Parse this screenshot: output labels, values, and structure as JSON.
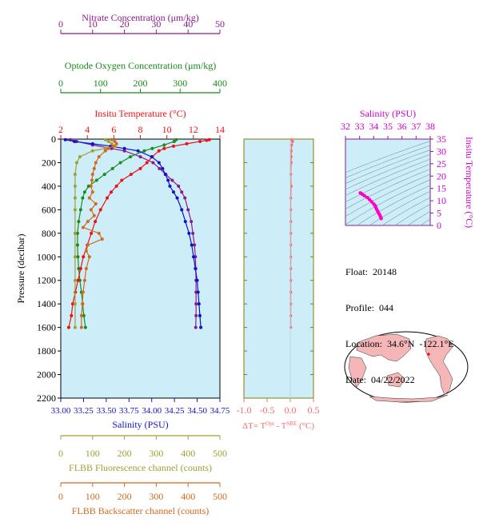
{
  "colors": {
    "nitrate": "#8b1a8b",
    "oxygen": "#1a8a1a",
    "temperature": "#ee1111",
    "salinity": "#1111cc",
    "fluorescence": "#a0a030",
    "backscatter": "#d2691e",
    "delta_t": "#ff6a6a",
    "plot_bg": "#cdeef8",
    "ts_curve": "#ff00cc",
    "map_land": "#f4b6b6"
  },
  "info": {
    "float_label": "Float:",
    "float_value": "20148",
    "profile_label": "Profile:",
    "profile_value": "044",
    "location_label": "Location:",
    "location_value": "34.6°N  -122.1°E",
    "date_label": "Date:",
    "date_value": "04/22/2022"
  },
  "map": {
    "icon": "world-map-icon",
    "float_marker": "float-position-marker"
  },
  "chart_data": [
    {
      "type": "line",
      "name": "profile",
      "ylabel": "Pressure (decibar)",
      "ylim": [
        2200,
        0
      ],
      "yticks": [
        0,
        200,
        400,
        600,
        800,
        1000,
        1200,
        1400,
        1600,
        1800,
        2000,
        2200
      ],
      "axes": {
        "nitrate": {
          "label": "Nitrate Concentration (μm/kg)",
          "lim": [
            0,
            50
          ],
          "ticks": [
            0,
            10,
            20,
            30,
            40,
            50
          ],
          "position": "top"
        },
        "oxygen": {
          "label": "Optode Oxygen Concentration (μm/kg)",
          "lim": [
            0,
            400
          ],
          "ticks": [
            0,
            100,
            200,
            300,
            400
          ],
          "position": "top"
        },
        "temperature": {
          "label": "Insitu Temperature (°C)",
          "lim": [
            2,
            14
          ],
          "ticks": [
            2,
            4,
            6,
            8,
            10,
            12,
            14
          ],
          "position": "top"
        },
        "salinity": {
          "label": "Salinity (PSU)",
          "lim": [
            33.0,
            34.75
          ],
          "ticks": [
            "33.00",
            "33.25",
            "33.50",
            "33.75",
            "34.00",
            "34.25",
            "34.50",
            "34.75"
          ],
          "position": "bottom"
        },
        "fluorescence": {
          "label": "FLBB Fluorescence channel (counts)",
          "lim": [
            0,
            500
          ],
          "ticks": [
            0,
            100,
            200,
            300,
            400,
            500
          ],
          "position": "bottom"
        },
        "backscatter": {
          "label": "FLBB Backscatter channel (counts)",
          "lim": [
            0,
            500
          ],
          "ticks": [
            0,
            100,
            200,
            300,
            400,
            500
          ],
          "position": "bottom"
        }
      },
      "series": [
        {
          "key": "nitrate",
          "pressure": [
            5,
            20,
            50,
            80,
            100,
            150,
            200,
            250,
            300,
            350,
            400,
            450,
            500,
            600,
            700,
            800,
            900,
            1000,
            1100,
            1200,
            1300,
            1400,
            1500,
            1600
          ],
          "values": [
            3,
            5,
            10,
            16,
            20,
            25,
            29,
            31,
            33,
            35,
            37,
            38,
            39,
            40,
            41,
            41.5,
            42,
            42.3,
            42.4,
            42.5,
            42.5,
            42.5,
            42.5,
            42.4
          ]
        },
        {
          "key": "oxygen",
          "pressure": [
            5,
            20,
            50,
            80,
            100,
            150,
            200,
            250,
            300,
            350,
            400,
            450,
            500,
            600,
            700,
            800,
            900,
            1000,
            1100,
            1200,
            1300,
            1400,
            1500,
            1600
          ],
          "values": [
            290,
            285,
            260,
            230,
            210,
            175,
            150,
            130,
            110,
            90,
            70,
            60,
            55,
            50,
            45,
            42,
            42,
            43,
            45,
            48,
            52,
            55,
            58,
            62
          ]
        },
        {
          "key": "temperature",
          "pressure": [
            5,
            10,
            20,
            40,
            60,
            80,
            100,
            150,
            200,
            250,
            300,
            350,
            400,
            450,
            500,
            600,
            700,
            800,
            900,
            1000,
            1100,
            1200,
            1300,
            1400,
            1500,
            1600
          ],
          "values": [
            13.2,
            13.0,
            12.5,
            11.5,
            10.5,
            9.8,
            9.4,
            8.9,
            8.5,
            8.0,
            7.3,
            6.6,
            6.2,
            5.8,
            5.5,
            5.0,
            4.6,
            4.3,
            4.0,
            3.7,
            3.5,
            3.3,
            3.1,
            2.9,
            2.8,
            2.6
          ]
        },
        {
          "key": "salinity",
          "pressure": [
            5,
            20,
            40,
            60,
            80,
            100,
            150,
            200,
            250,
            300,
            350,
            400,
            450,
            500,
            600,
            700,
            800,
            900,
            1000,
            1100,
            1200,
            1300,
            1400,
            1500,
            1600
          ],
          "values": [
            33.05,
            33.15,
            33.35,
            33.55,
            33.7,
            33.85,
            34.0,
            34.08,
            34.12,
            34.15,
            34.18,
            34.2,
            34.24,
            34.28,
            34.33,
            34.37,
            34.41,
            34.44,
            34.46,
            34.48,
            34.5,
            34.51,
            34.52,
            34.53,
            34.54
          ]
        },
        {
          "key": "fluorescence",
          "pressure": [
            5,
            20,
            40,
            60,
            80,
            100,
            150,
            200,
            300,
            400,
            500,
            600,
            800,
            1000,
            1200,
            1400,
            1600
          ],
          "values": [
            140,
            150,
            160,
            170,
            140,
            100,
            60,
            50,
            45,
            45,
            45,
            45,
            45,
            45,
            45,
            45,
            45
          ]
        },
        {
          "key": "backscatter",
          "pressure": [
            5,
            20,
            40,
            60,
            80,
            100,
            150,
            200,
            250,
            300,
            350,
            400,
            450,
            500,
            550,
            600,
            650,
            700,
            750,
            800,
            850,
            900,
            950,
            1000,
            1100,
            1200,
            1300,
            1400,
            1500,
            1600
          ],
          "values": [
            160,
            170,
            175,
            165,
            150,
            140,
            120,
            110,
            105,
            100,
            98,
            95,
            100,
            90,
            110,
            95,
            105,
            85,
            70,
            120,
            130,
            85,
            80,
            90,
            80,
            75,
            70,
            68,
            65,
            65
          ]
        }
      ]
    },
    {
      "type": "line",
      "name": "delta-t",
      "xlabel_parts": [
        "ΔT= T",
        "Opt",
        " - T",
        "SBE",
        " (°C)"
      ],
      "xlim": [
        -1.0,
        0.5
      ],
      "xticks": [
        "-1.0",
        "-0.5",
        "0.0",
        "0.5"
      ],
      "ylim": [
        2200,
        0
      ],
      "series": [
        {
          "key": "delta_t",
          "pressure": [
            5,
            20,
            50,
            100,
            150,
            200,
            300,
            400,
            500,
            600,
            700,
            800,
            900,
            1000,
            1100,
            1200,
            1300,
            1400,
            1500,
            1600
          ],
          "values": [
            0.02,
            0.05,
            0.03,
            0.02,
            0.02,
            0.02,
            0.01,
            0.02,
            0.01,
            0.01,
            0.01,
            0.01,
            0.01,
            0.01,
            0.01,
            0.01,
            0.01,
            0.01,
            0.01,
            0.01
          ]
        }
      ]
    },
    {
      "type": "scatter",
      "name": "t-s-diagram",
      "title": "Salinity (PSU)",
      "ylabel": "Insitu Temperature (°C)",
      "xlim": [
        32,
        38
      ],
      "xticks": [
        32,
        33,
        34,
        35,
        36,
        37,
        38
      ],
      "ylim": [
        0,
        35
      ],
      "yticks": [
        0,
        5,
        10,
        15,
        20,
        25,
        30,
        35
      ],
      "series": [
        {
          "key": "ts",
          "salinity": [
            33.05,
            33.1,
            33.2,
            33.35,
            33.55,
            33.7,
            33.85,
            34.0,
            34.1,
            34.15,
            34.2,
            34.28,
            34.35,
            34.42,
            34.47,
            34.5,
            34.53
          ],
          "temperature": [
            13.2,
            13.0,
            12.6,
            12.0,
            11.3,
            10.5,
            9.6,
            8.7,
            8.0,
            7.3,
            6.6,
            5.8,
            5.0,
            4.3,
            3.7,
            3.2,
            2.8
          ]
        }
      ]
    }
  ]
}
